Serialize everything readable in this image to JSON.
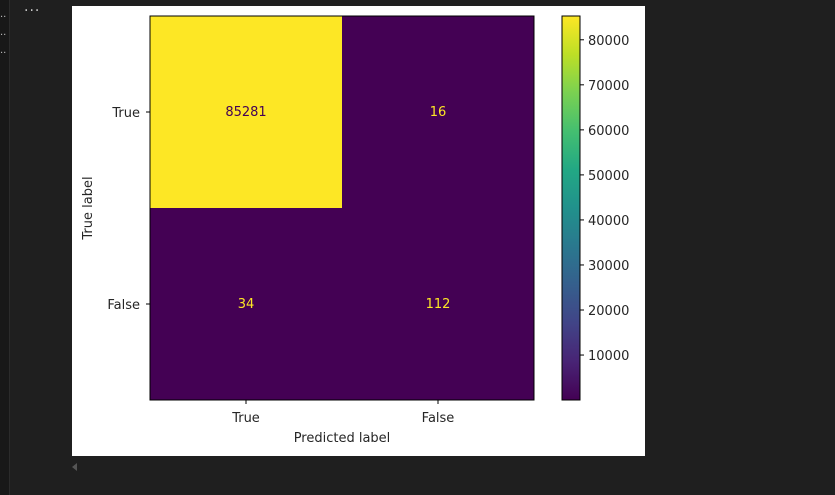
{
  "notebook": {
    "cell_menu_label": "···",
    "gutter_markers": [
      "..",
      "..",
      ".."
    ]
  },
  "colors": {
    "high": "#fde725",
    "low": "#440154",
    "text_on_low": "#fde725",
    "text_on_high": "#440154",
    "colormap": [
      "#440154",
      "#482475",
      "#414487",
      "#355f8d",
      "#2a788e",
      "#21918c",
      "#22a884",
      "#44bf70",
      "#7ad151",
      "#bddf26",
      "#fde725"
    ]
  },
  "chart_data": {
    "type": "heatmap",
    "title": "",
    "xlabel": "Predicted label",
    "ylabel": "True label",
    "x_categories": [
      "True",
      "False"
    ],
    "y_categories": [
      "True",
      "False"
    ],
    "values": [
      [
        85281,
        16
      ],
      [
        34,
        112
      ]
    ],
    "colorbar": {
      "min": 16,
      "max": 85281,
      "ticks": [
        10000,
        20000,
        30000,
        40000,
        50000,
        60000,
        70000,
        80000
      ],
      "tick_labels": [
        "10000",
        "20000",
        "30000",
        "40000",
        "50000",
        "60000",
        "70000",
        "80000"
      ]
    }
  }
}
